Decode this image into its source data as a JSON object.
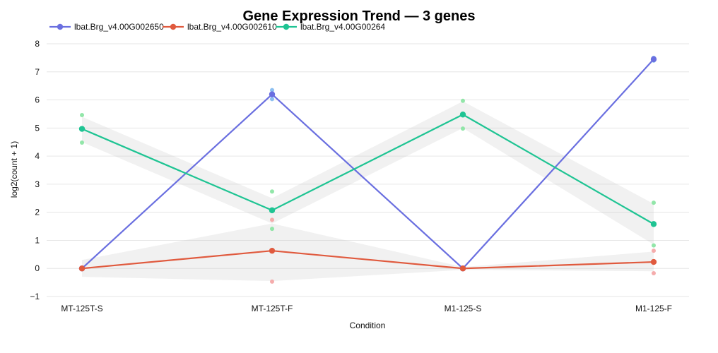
{
  "chart_data": {
    "type": "line",
    "title": "Gene Expression Trend — 3 genes",
    "xlabel": "Condition",
    "ylabel": "log2(count + 1)",
    "categories": [
      "MT-125T-S",
      "MT-125T-F",
      "M1-125-S",
      "M1-125-F"
    ],
    "ylim": [
      -1,
      8
    ],
    "yticks": [
      "−1",
      "0",
      "1",
      "2",
      "3",
      "4",
      "5",
      "6",
      "7",
      "8"
    ],
    "grid": true,
    "legend_position": "top-left",
    "series": [
      {
        "name": "lbat.Brg_v4.00G002650",
        "color": "#6a6fe0",
        "replicate_color": "#7fb8f0",
        "values": [
          0,
          6.2,
          0,
          7.45
        ],
        "replicates": [
          [
            0,
            0
          ],
          [
            6.35,
            6.03
          ],
          [
            0,
            0
          ],
          [
            7.5,
            7.4
          ]
        ],
        "band": [
          [
            0,
            0
          ],
          [
            6.2,
            6.2
          ],
          [
            0,
            0
          ],
          [
            7.45,
            7.45
          ]
        ]
      },
      {
        "name": "lbat.Brg_v4.00G002610",
        "color": "#e05a3e",
        "replicate_color": "#f4a3a3",
        "values": [
          0,
          0.63,
          0,
          0.23
        ],
        "replicates": [
          [
            0,
            0
          ],
          [
            1.73,
            -0.47
          ],
          [
            0,
            0
          ],
          [
            0.63,
            -0.17
          ]
        ],
        "band": [
          [
            -0.3,
            0.3
          ],
          [
            -0.45,
            1.6
          ],
          [
            -0.05,
            0.05
          ],
          [
            -0.1,
            0.6
          ]
        ]
      },
      {
        "name": "lbat.Brg_v4.00G00264",
        "color": "#1fc493",
        "replicate_color": "#86e3a0",
        "values": [
          4.97,
          2.07,
          5.48,
          1.58
        ],
        "replicates": [
          [
            5.46,
            4.48
          ],
          [
            2.74,
            1.41
          ],
          [
            5.97,
            4.98
          ],
          [
            2.34,
            0.82
          ]
        ],
        "band": [
          [
            4.5,
            5.4
          ],
          [
            1.6,
            2.5
          ],
          [
            5.0,
            5.95
          ],
          [
            0.85,
            2.3
          ]
        ]
      }
    ]
  }
}
